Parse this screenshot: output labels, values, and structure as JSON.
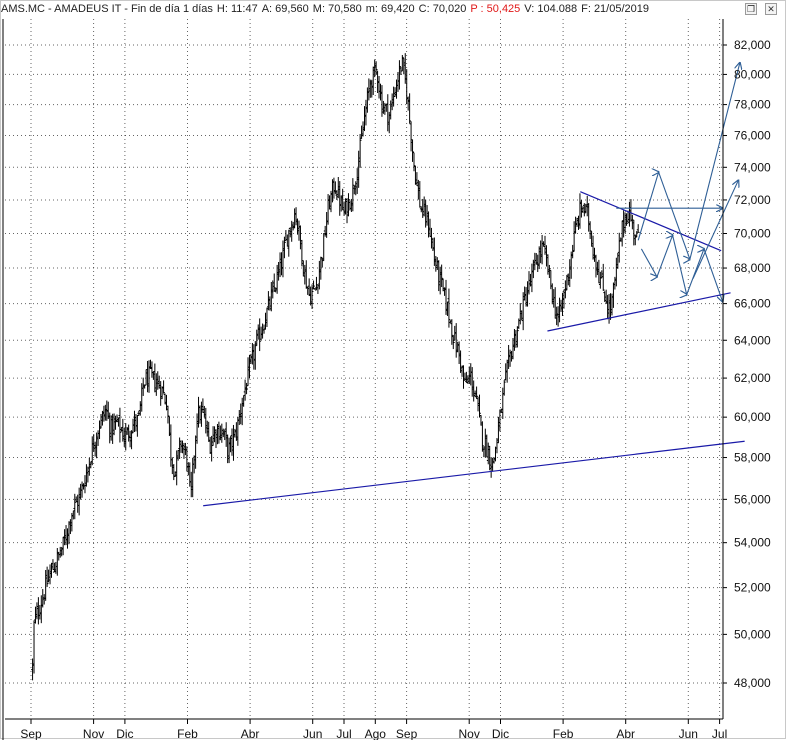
{
  "window": {
    "title_parts": [
      {
        "text": "AMS.MC - AMADEUS IT - Fin de día 1 días",
        "color": "#222222"
      },
      {
        "text": "H: 11:47",
        "color": "#222222"
      },
      {
        "text": "A: 69,560",
        "color": "#222222"
      },
      {
        "text": "M: 70,580",
        "color": "#222222"
      },
      {
        "text": "m: 69,420",
        "color": "#222222"
      },
      {
        "text": "C: 70,020",
        "color": "#222222"
      },
      {
        "text": "P : 50,425",
        "color": "#e01818"
      },
      {
        "text": "V: 104.088",
        "color": "#222222"
      },
      {
        "text": "F: 21/05/2019",
        "color": "#222222"
      }
    ],
    "icons": [
      "restore-icon",
      "close-icon"
    ]
  },
  "chart_data": {
    "type": "ohlc",
    "symbol": "AMS.MC",
    "name": "AMADEUS IT",
    "colors": {
      "price": "#000000",
      "trendline": "#1a1aa8",
      "projection": "#2f5f96",
      "grid": "#000000"
    },
    "y_axis": {
      "min": 46500,
      "max": 83000,
      "position": "right",
      "ticks": [
        48000,
        50000,
        52000,
        54000,
        56000,
        58000,
        60000,
        62000,
        64000,
        66000,
        68000,
        70000,
        72000,
        74000,
        76000,
        78000,
        80000,
        82000
      ],
      "tick_labels": [
        "48,000",
        "50,000",
        "52,000",
        "54,000",
        "56,000",
        "58,000",
        "60,000",
        "62,000",
        "64,000",
        "66,000",
        "68,000",
        "70,000",
        "72,000",
        "74,000",
        "76,000",
        "78,000",
        "80,000",
        "82,000"
      ],
      "scale": "log"
    },
    "x_axis": {
      "start_month": "2017-09",
      "end_month": "2019-07",
      "labels": [
        {
          "text": "Sep",
          "month": 0
        },
        {
          "text": "Nov",
          "month": 2
        },
        {
          "text": "Dic",
          "month": 3
        },
        {
          "text": "Feb",
          "month": 5
        },
        {
          "text": "Abr",
          "month": 7
        },
        {
          "text": "Jun",
          "month": 9
        },
        {
          "text": "Jul",
          "month": 10
        },
        {
          "text": "Ago",
          "month": 11
        },
        {
          "text": "Sep",
          "month": 12
        },
        {
          "text": "Nov",
          "month": 14
        },
        {
          "text": "Dic",
          "month": 15
        },
        {
          "text": "Feb",
          "month": 17
        },
        {
          "text": "Abr",
          "month": 19
        },
        {
          "text": "Jun",
          "month": 21
        },
        {
          "text": "Jul",
          "month": 22
        }
      ],
      "gridlines": "dotted vertical at each labelled month"
    },
    "price_path": [
      [
        0.05,
        48600
      ],
      [
        0.1,
        50500
      ],
      [
        0.3,
        51300
      ],
      [
        0.6,
        52600
      ],
      [
        0.9,
        53400
      ],
      [
        1.1,
        54200
      ],
      [
        1.3,
        55400
      ],
      [
        1.55,
        56100
      ],
      [
        1.8,
        57400
      ],
      [
        2.0,
        58700
      ],
      [
        2.2,
        59700
      ],
      [
        2.4,
        60400
      ],
      [
        2.55,
        59400
      ],
      [
        2.75,
        59700
      ],
      [
        3.0,
        59000
      ],
      [
        3.25,
        59600
      ],
      [
        3.45,
        59900
      ],
      [
        3.6,
        61800
      ],
      [
        3.8,
        62100
      ],
      [
        4.0,
        61800
      ],
      [
        4.15,
        61500
      ],
      [
        4.35,
        60700
      ],
      [
        4.45,
        58300
      ],
      [
        4.6,
        57300
      ],
      [
        4.8,
        58800
      ],
      [
        5.0,
        57800
      ],
      [
        5.1,
        55900
      ],
      [
        5.3,
        60100
      ],
      [
        5.5,
        60200
      ],
      [
        5.7,
        58600
      ],
      [
        5.9,
        59400
      ],
      [
        6.15,
        59200
      ],
      [
        6.3,
        58300
      ],
      [
        6.55,
        59200
      ],
      [
        6.75,
        60800
      ],
      [
        6.95,
        62200
      ],
      [
        7.2,
        63800
      ],
      [
        7.5,
        65300
      ],
      [
        7.75,
        66700
      ],
      [
        8.0,
        68300
      ],
      [
        8.2,
        69900
      ],
      [
        8.45,
        71300
      ],
      [
        8.55,
        70100
      ],
      [
        8.75,
        67600
      ],
      [
        8.9,
        66400
      ],
      [
        9.1,
        66900
      ],
      [
        9.3,
        68800
      ],
      [
        9.5,
        71600
      ],
      [
        9.7,
        73000
      ],
      [
        9.85,
        72100
      ],
      [
        10.0,
        71200
      ],
      [
        10.25,
        72300
      ],
      [
        10.45,
        74200
      ],
      [
        10.65,
        77100
      ],
      [
        10.85,
        79600
      ],
      [
        11.05,
        80300
      ],
      [
        11.2,
        78100
      ],
      [
        11.45,
        77300
      ],
      [
        11.65,
        79200
      ],
      [
        11.85,
        80800
      ],
      [
        12.0,
        79000
      ],
      [
        12.25,
        73900
      ],
      [
        12.45,
        71500
      ],
      [
        12.7,
        70600
      ],
      [
        12.9,
        68400
      ],
      [
        13.1,
        67100
      ],
      [
        13.3,
        65800
      ],
      [
        13.5,
        64200
      ],
      [
        13.7,
        63100
      ],
      [
        13.85,
        61600
      ],
      [
        14.05,
        62100
      ],
      [
        14.25,
        60600
      ],
      [
        14.4,
        59100
      ],
      [
        14.6,
        58300
      ],
      [
        14.75,
        57600
      ],
      [
        14.95,
        59600
      ],
      [
        15.15,
        61800
      ],
      [
        15.35,
        63500
      ],
      [
        15.55,
        64700
      ],
      [
        15.75,
        66100
      ],
      [
        15.95,
        67200
      ],
      [
        16.15,
        68400
      ],
      [
        16.35,
        69200
      ],
      [
        16.5,
        68100
      ],
      [
        16.7,
        66100
      ],
      [
        16.85,
        65100
      ],
      [
        17.0,
        66300
      ],
      [
        17.2,
        68100
      ],
      [
        17.4,
        70300
      ],
      [
        17.6,
        71700
      ],
      [
        17.8,
        71000
      ],
      [
        17.95,
        69200
      ],
      [
        18.15,
        67600
      ],
      [
        18.35,
        66400
      ],
      [
        18.5,
        65600
      ],
      [
        18.65,
        67100
      ],
      [
        18.8,
        69300
      ],
      [
        18.95,
        70900
      ],
      [
        19.1,
        71300
      ],
      [
        19.25,
        70300
      ],
      [
        19.4,
        69600
      ]
    ],
    "trendlines": [
      {
        "name": "long-term-support",
        "from": [
          5.5,
          55700
        ],
        "to": [
          22.8,
          58800
        ]
      },
      {
        "name": "triangle-top",
        "from": [
          17.55,
          72500
        ],
        "to": [
          22.05,
          69000
        ]
      },
      {
        "name": "triangle-bottom",
        "from": [
          16.5,
          64500
        ],
        "to": [
          22.35,
          66600
        ]
      }
    ],
    "projections": [
      {
        "name": "projection-path-up",
        "points": [
          [
            19.4,
            69600
          ],
          [
            20.05,
            73700
          ],
          [
            21.05,
            68500
          ],
          [
            22.65,
            80800
          ]
        ]
      },
      {
        "name": "projection-zigzag-1",
        "points": [
          [
            19.5,
            69100
          ],
          [
            20.0,
            67500
          ],
          [
            20.5,
            69900
          ],
          [
            20.95,
            66500
          ],
          [
            21.5,
            69100
          ],
          [
            22.1,
            66100
          ]
        ]
      },
      {
        "name": "projection-line-up-2",
        "points": [
          [
            21.15,
            67400
          ],
          [
            22.6,
            73200
          ]
        ]
      },
      {
        "name": "projection-horizontal",
        "points": [
          [
            18.7,
            71500
          ],
          [
            22.1,
            71500
          ]
        ]
      }
    ]
  }
}
